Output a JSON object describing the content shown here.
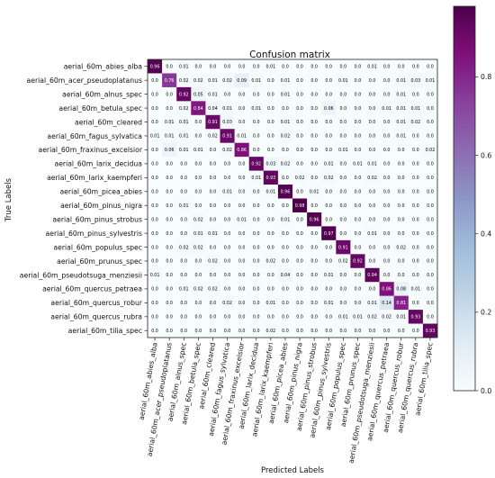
{
  "chart_data": {
    "type": "heatmap",
    "title": "Confusion matrix",
    "xlabel": "Predicted Labels",
    "ylabel": "True Labels",
    "labels": [
      "aerial_60m_abies_alba",
      "aerial_60m_acer_pseudoplatanus",
      "aerial_60m_alnus_spec",
      "aerial_60m_betula_spec",
      "aerial_60m_cleared",
      "aerial_60m_fagus_sylvatica",
      "aerial_60m_fraxinus_excelsior",
      "aerial_60m_larix_decidua",
      "aerial_60m_larix_kaempferi",
      "aerial_60m_picea_abies",
      "aerial_60m_pinus_nigra",
      "aerial_60m_pinus_strobus",
      "aerial_60m_pinus_sylvestris",
      "aerial_60m_populus_spec",
      "aerial_60m_prunus_spec",
      "aerial_60m_pseudotsuga_menziesii",
      "aerial_60m_quercus_petraea",
      "aerial_60m_quercus_robur",
      "aerial_60m_quercus_rubra",
      "aerial_60m_tilia_spec"
    ],
    "matrix": [
      [
        0.96,
        0.0,
        0.01,
        0.0,
        0.0,
        0.0,
        0.0,
        0.0,
        0.01,
        0.0,
        0.0,
        0.0,
        0.0,
        0.0,
        0.0,
        0.01,
        0.0,
        0.0,
        0.0,
        0.0
      ],
      [
        0.0,
        0.76,
        0.02,
        0.02,
        0.01,
        0.02,
        0.09,
        0.01,
        0.0,
        0.01,
        0.0,
        0.0,
        0.0,
        0.01,
        0.0,
        0.0,
        0.0,
        0.01,
        0.03,
        0.01
      ],
      [
        0.0,
        0.0,
        0.92,
        0.05,
        0.01,
        0.0,
        0.0,
        0.0,
        0.0,
        0.01,
        0.0,
        0.0,
        0.0,
        0.0,
        0.0,
        0.0,
        0.0,
        0.01,
        0.0,
        0.0
      ],
      [
        0.0,
        0.0,
        0.02,
        0.84,
        0.04,
        0.01,
        0.0,
        0.01,
        0.0,
        0.0,
        0.0,
        0.0,
        0.06,
        0.0,
        0.0,
        0.0,
        0.01,
        0.01,
        0.01,
        0.0
      ],
      [
        0.0,
        0.01,
        0.01,
        0.0,
        0.91,
        0.03,
        0.0,
        0.0,
        0.0,
        0.01,
        0.0,
        0.0,
        0.0,
        0.0,
        0.0,
        0.0,
        0.0,
        0.01,
        0.02,
        0.0
      ],
      [
        0.01,
        0.01,
        0.01,
        0.0,
        0.02,
        0.91,
        0.01,
        0.0,
        0.0,
        0.02,
        0.0,
        0.0,
        0.0,
        0.0,
        0.0,
        0.0,
        0.0,
        0.01,
        0.0,
        0.0
      ],
      [
        0.0,
        0.06,
        0.01,
        0.01,
        0.0,
        0.02,
        0.86,
        0.0,
        0.0,
        0.0,
        0.0,
        0.0,
        0.0,
        0.01,
        0.0,
        0.0,
        0.0,
        0.0,
        0.0,
        0.02
      ],
      [
        0.0,
        0.0,
        0.0,
        0.0,
        0.0,
        0.0,
        0.0,
        0.92,
        0.03,
        0.02,
        0.0,
        0.0,
        0.01,
        0.0,
        0.01,
        0.01,
        0.0,
        0.0,
        0.0,
        0.0
      ],
      [
        0.0,
        0.0,
        0.0,
        0.0,
        0.0,
        0.0,
        0.0,
        0.01,
        0.93,
        0.0,
        0.02,
        0.0,
        0.02,
        0.0,
        0.0,
        0.02,
        0.0,
        0.0,
        0.0,
        0.0
      ],
      [
        0.0,
        0.0,
        0.0,
        0.0,
        0.0,
        0.01,
        0.0,
        0.0,
        0.01,
        0.96,
        0.0,
        0.01,
        0.0,
        0.0,
        0.0,
        0.0,
        0.0,
        0.0,
        0.0,
        0.0
      ],
      [
        0.0,
        0.0,
        0.01,
        0.0,
        0.0,
        0.0,
        0.0,
        0.0,
        0.0,
        0.0,
        0.98,
        0.0,
        0.0,
        0.0,
        0.0,
        0.0,
        0.0,
        0.0,
        0.0,
        0.0
      ],
      [
        0.0,
        0.0,
        0.0,
        0.02,
        0.0,
        0.0,
        0.01,
        0.0,
        0.0,
        0.01,
        0.0,
        0.96,
        0.0,
        0.0,
        0.0,
        0.0,
        0.0,
        0.0,
        0.0,
        0.0
      ],
      [
        0.0,
        0.0,
        0.0,
        0.01,
        0.01,
        0.0,
        0.0,
        0.0,
        0.0,
        0.0,
        0.0,
        0.0,
        0.97,
        0.0,
        0.0,
        0.01,
        0.0,
        0.0,
        0.0,
        0.0
      ],
      [
        0.0,
        0.0,
        0.02,
        0.02,
        0.0,
        0.0,
        0.0,
        0.0,
        0.0,
        0.0,
        0.0,
        0.0,
        0.0,
        0.91,
        0.0,
        0.0,
        0.0,
        0.02,
        0.0,
        0.0
      ],
      [
        0.0,
        0.0,
        0.0,
        0.0,
        0.02,
        0.0,
        0.0,
        0.0,
        0.02,
        0.0,
        0.0,
        0.0,
        0.0,
        0.02,
        0.92,
        0.0,
        0.0,
        0.0,
        0.0,
        0.0
      ],
      [
        0.01,
        0.0,
        0.0,
        0.0,
        0.0,
        0.0,
        0.0,
        0.0,
        0.0,
        0.04,
        0.0,
        0.0,
        0.01,
        0.0,
        0.0,
        0.94,
        0.0,
        0.0,
        0.0,
        0.0
      ],
      [
        0.0,
        0.0,
        0.01,
        0.02,
        0.02,
        0.0,
        0.0,
        0.0,
        0.0,
        0.0,
        0.0,
        0.0,
        0.0,
        0.0,
        0.0,
        0.0,
        0.86,
        0.08,
        0.01,
        0.0
      ],
      [
        0.0,
        0.0,
        0.0,
        0.0,
        0.0,
        0.02,
        0.0,
        0.0,
        0.01,
        0.0,
        0.0,
        0.0,
        0.01,
        0.0,
        0.0,
        0.01,
        0.14,
        0.81,
        0.0,
        0.0
      ],
      [
        0.0,
        0.0,
        0.0,
        0.0,
        0.0,
        0.0,
        0.0,
        0.0,
        0.0,
        0.0,
        0.0,
        0.0,
        0.0,
        0.01,
        0.01,
        0.02,
        0.02,
        0.01,
        0.93,
        0.0
      ],
      [
        0.0,
        0.0,
        0.0,
        0.0,
        0.0,
        0.0,
        0.0,
        0.0,
        0.02,
        0.0,
        0.0,
        0.0,
        0.0,
        0.0,
        0.0,
        0.0,
        0.0,
        0.0,
        0.0,
        0.93
      ]
    ],
    "colorbar": {
      "ticks": [
        0.0,
        0.2,
        0.4,
        0.6,
        0.8
      ],
      "tick_labels": [
        "0.0",
        "0.2",
        "0.4",
        "0.6",
        "0.8"
      ],
      "range": [
        0,
        0.98
      ]
    },
    "colormap": "BuPu",
    "colors": {
      "stops": [
        "#f7fcfd",
        "#e0ecf4",
        "#bfd3e6",
        "#9ebcda",
        "#8c96c6",
        "#8c6bb1",
        "#88419d",
        "#810f7c",
        "#4d004b"
      ],
      "text_light": "#ffffff",
      "text_dark": "#000000"
    },
    "grid": false
  }
}
